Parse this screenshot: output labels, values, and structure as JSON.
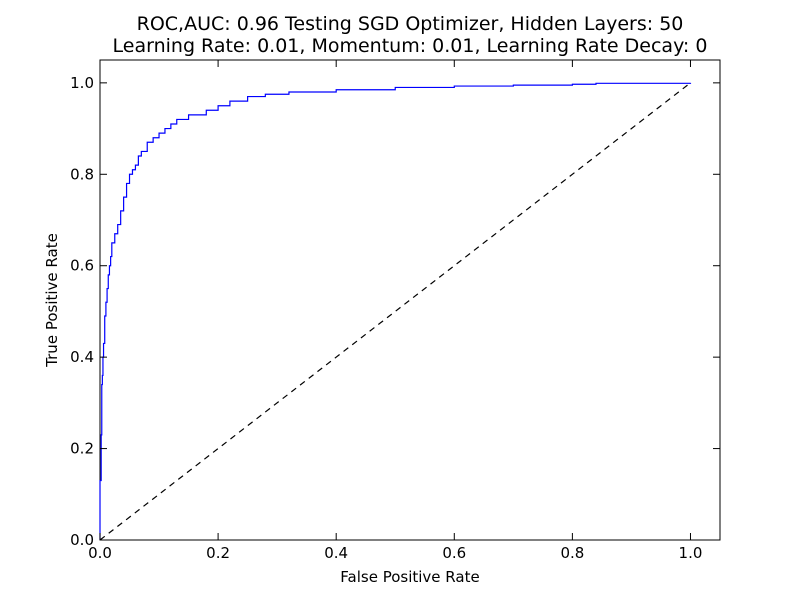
{
  "chart_data": {
    "type": "line",
    "title_lines": [
      "ROC,AUC: 0.96 Testing SGD Optimizer, Hidden Layers: 50",
      "Learning Rate: 0.01, Momentum: 0.01, Learning Rate Decay: 0"
    ],
    "xlabel": "False Positive Rate",
    "ylabel": "True Positive Rate",
    "xlim": [
      0.0,
      1.05
    ],
    "ylim": [
      0.0,
      1.05
    ],
    "grid": false,
    "x_ticks": [
      0.0,
      0.2,
      0.4,
      0.6,
      0.8,
      1.0
    ],
    "y_ticks": [
      0.0,
      0.2,
      0.4,
      0.6,
      0.8,
      1.0
    ],
    "x_tick_labels": [
      "0.0",
      "0.2",
      "0.4",
      "0.6",
      "0.8",
      "1.0"
    ],
    "y_tick_labels": [
      "0.0",
      "0.2",
      "0.4",
      "0.6",
      "0.8",
      "1.0"
    ],
    "series": [
      {
        "color": "#0000ff",
        "style": "solid",
        "x": [
          0.0,
          0.0,
          0.002,
          0.003,
          0.004,
          0.005,
          0.006,
          0.008,
          0.01,
          0.012,
          0.014,
          0.016,
          0.018,
          0.02,
          0.025,
          0.03,
          0.035,
          0.04,
          0.045,
          0.05,
          0.055,
          0.06,
          0.065,
          0.07,
          0.08,
          0.09,
          0.1,
          0.11,
          0.12,
          0.13,
          0.15,
          0.18,
          0.2,
          0.22,
          0.25,
          0.28,
          0.32,
          0.4,
          0.5,
          0.6,
          0.7,
          0.8,
          0.84,
          1.0
        ],
        "y": [
          0.0,
          0.13,
          0.23,
          0.34,
          0.36,
          0.4,
          0.43,
          0.49,
          0.52,
          0.55,
          0.58,
          0.6,
          0.62,
          0.65,
          0.67,
          0.69,
          0.72,
          0.75,
          0.78,
          0.8,
          0.81,
          0.82,
          0.84,
          0.85,
          0.87,
          0.88,
          0.89,
          0.9,
          0.91,
          0.92,
          0.93,
          0.94,
          0.95,
          0.96,
          0.97,
          0.975,
          0.98,
          0.985,
          0.99,
          0.993,
          0.995,
          0.997,
          0.999,
          1.0
        ]
      },
      {
        "color": "#000000",
        "style": "dashed",
        "x": [
          0.0,
          1.0
        ],
        "y": [
          0.0,
          1.0
        ]
      }
    ]
  }
}
